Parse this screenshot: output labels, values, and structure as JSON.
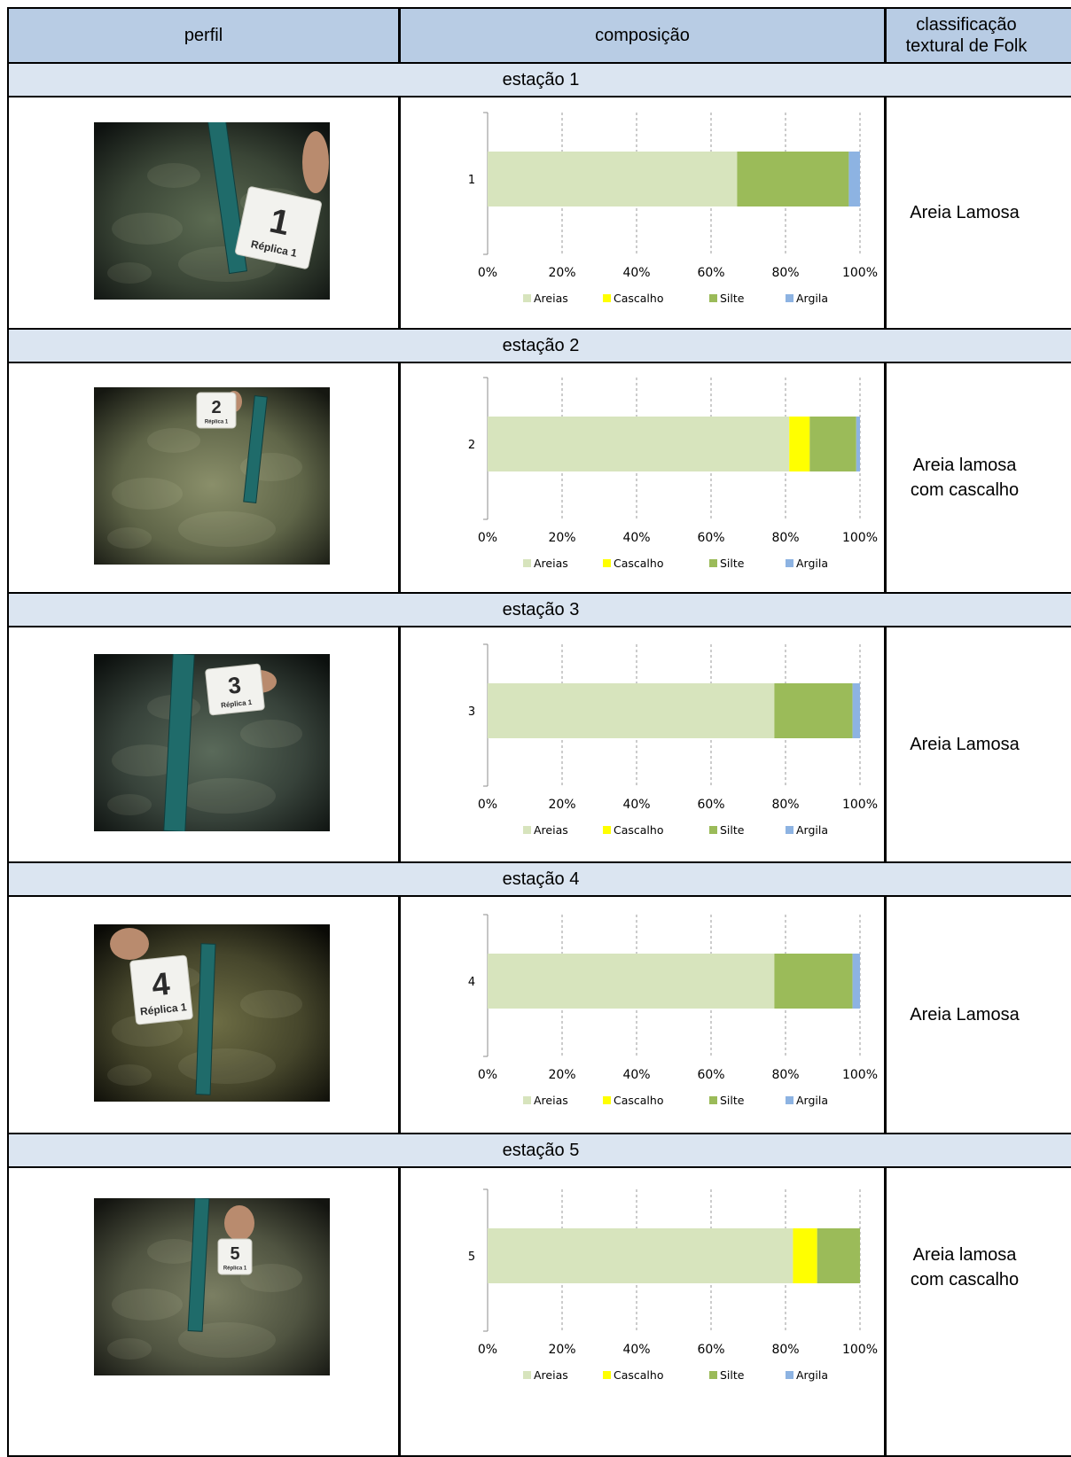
{
  "table": {
    "headers": {
      "perfil": "perfil",
      "composicao": "composição",
      "classificacao": [
        "classificação",
        "textural de Folk"
      ]
    },
    "stations": [
      {
        "label": "estação 1",
        "classification": [
          "Areia Lamosa"
        ],
        "photo": {
          "card_number": "1",
          "card_text": "Réplica 1"
        }
      },
      {
        "label": "estação 2",
        "classification": [
          "Areia lamosa",
          "com cascalho"
        ],
        "photo": {
          "card_number": "2",
          "card_text": "Réplica 1"
        }
      },
      {
        "label": "estação 3",
        "classification": [
          "Areia Lamosa"
        ],
        "photo": {
          "card_number": "3",
          "card_text": "Réplica 1"
        }
      },
      {
        "label": "estação 4",
        "classification": [
          "Areia Lamosa"
        ],
        "photo": {
          "card_number": "4",
          "card_text": "Réplica 1"
        }
      },
      {
        "label": "estação 5",
        "classification": [
          "Areia lamosa",
          "com cascalho"
        ],
        "photo": {
          "card_number": "5",
          "card_text": "Réplica 1"
        }
      }
    ]
  },
  "chart_data": [
    {
      "type": "bar",
      "orientation": "horizontal",
      "stacked": "percent",
      "categories": [
        "1"
      ],
      "series": [
        {
          "name": "Areias",
          "values": [
            67
          ]
        },
        {
          "name": "Cascalho",
          "values": [
            0
          ]
        },
        {
          "name": "Silte",
          "values": [
            30
          ]
        },
        {
          "name": "Argila",
          "values": [
            3
          ]
        }
      ],
      "xlim": [
        0,
        100
      ],
      "xticks": [
        "0%",
        "20%",
        "40%",
        "60%",
        "80%",
        "100%"
      ],
      "grid": "vertical-dashed",
      "legend": "bottom"
    },
    {
      "type": "bar",
      "orientation": "horizontal",
      "stacked": "percent",
      "categories": [
        "2"
      ],
      "series": [
        {
          "name": "Areias",
          "values": [
            81
          ]
        },
        {
          "name": "Cascalho",
          "values": [
            5.5
          ]
        },
        {
          "name": "Silte",
          "values": [
            12.5
          ]
        },
        {
          "name": "Argila",
          "values": [
            1
          ]
        }
      ],
      "xlim": [
        0,
        100
      ],
      "xticks": [
        "0%",
        "20%",
        "40%",
        "60%",
        "80%",
        "100%"
      ],
      "grid": "vertical-dashed",
      "legend": "bottom"
    },
    {
      "type": "bar",
      "orientation": "horizontal",
      "stacked": "percent",
      "categories": [
        "3"
      ],
      "series": [
        {
          "name": "Areias",
          "values": [
            77
          ]
        },
        {
          "name": "Cascalho",
          "values": [
            0
          ]
        },
        {
          "name": "Silte",
          "values": [
            21
          ]
        },
        {
          "name": "Argila",
          "values": [
            2
          ]
        }
      ],
      "xlim": [
        0,
        100
      ],
      "xticks": [
        "0%",
        "20%",
        "40%",
        "60%",
        "80%",
        "100%"
      ],
      "grid": "vertical-dashed",
      "legend": "bottom"
    },
    {
      "type": "bar",
      "orientation": "horizontal",
      "stacked": "percent",
      "categories": [
        "4"
      ],
      "series": [
        {
          "name": "Areias",
          "values": [
            77
          ]
        },
        {
          "name": "Cascalho",
          "values": [
            0
          ]
        },
        {
          "name": "Silte",
          "values": [
            21
          ]
        },
        {
          "name": "Argila",
          "values": [
            2
          ]
        }
      ],
      "xlim": [
        0,
        100
      ],
      "xticks": [
        "0%",
        "20%",
        "40%",
        "60%",
        "80%",
        "100%"
      ],
      "grid": "vertical-dashed",
      "legend": "bottom"
    },
    {
      "type": "bar",
      "orientation": "horizontal",
      "stacked": "percent",
      "categories": [
        "5"
      ],
      "series": [
        {
          "name": "Areias",
          "values": [
            82
          ]
        },
        {
          "name": "Cascalho",
          "values": [
            6.5
          ]
        },
        {
          "name": "Silte",
          "values": [
            11.5
          ]
        },
        {
          "name": "Argila",
          "values": [
            0
          ]
        }
      ],
      "xlim": [
        0,
        100
      ],
      "xticks": [
        "0%",
        "20%",
        "40%",
        "60%",
        "80%",
        "100%"
      ],
      "grid": "vertical-dashed",
      "legend": "bottom"
    }
  ],
  "colors": {
    "Areias": "#d7e4bd",
    "Cascalho": "#ffff00",
    "Silte": "#9bbb59",
    "Argila": "#8db3e2",
    "header_bg": "#b8cce4",
    "separator_bg": "#dbe5f1"
  }
}
